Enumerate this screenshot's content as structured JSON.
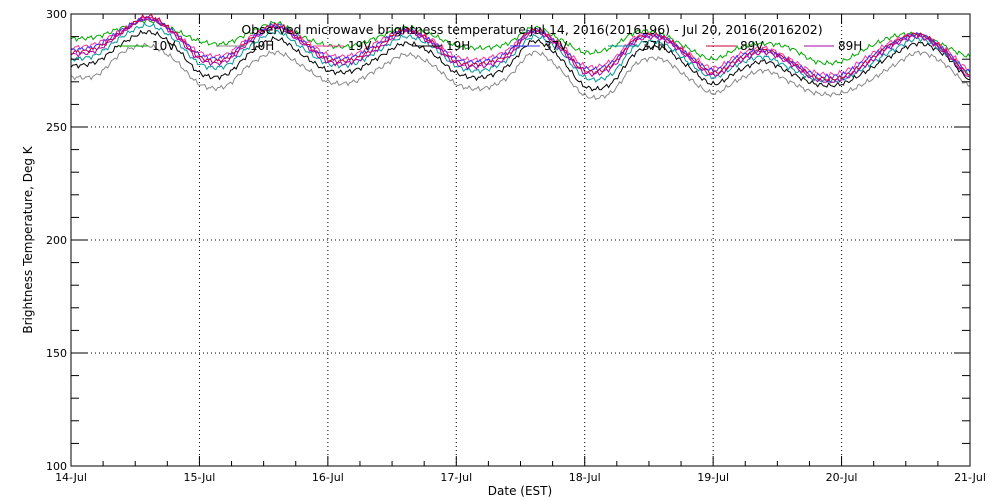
{
  "chart_data": {
    "type": "line",
    "title": "Observed microwave brightness temperature Jul 14, 2016(2016196) - Jul 20, 2016(2016202)",
    "xlabel": "Date (EST)",
    "ylabel": "Brightness Temperature, Deg K",
    "xlim": [
      0,
      7
    ],
    "ylim": [
      100,
      300
    ],
    "x_tick_values": [
      0,
      1,
      2,
      3,
      4,
      5,
      6,
      7
    ],
    "x_tick_labels": [
      "14-Jul",
      "15-Jul",
      "16-Jul",
      "17-Jul",
      "18-Jul",
      "19-Jul",
      "20-Jul",
      "21-Jul"
    ],
    "y_ticks": [
      100,
      150,
      200,
      250,
      300
    ],
    "grid": true,
    "legend_position": "top",
    "x": [
      0,
      0.2,
      0.4,
      0.6,
      0.8,
      1.0,
      1.2,
      1.4,
      1.6,
      1.8,
      2.0,
      2.2,
      2.4,
      2.6,
      2.8,
      3.0,
      3.2,
      3.4,
      3.6,
      3.8,
      4.0,
      4.2,
      4.4,
      4.6,
      4.8,
      5.0,
      5.2,
      5.4,
      5.6,
      5.8,
      6.0,
      6.2,
      6.4,
      6.6,
      6.8,
      7.0
    ],
    "series": [
      {
        "name": "10V",
        "color": "#00aa00",
        "values": [
          289,
          290,
          294,
          297,
          293,
          288,
          287,
          292,
          296,
          290,
          286,
          286,
          290,
          294,
          291,
          286,
          285,
          287,
          294,
          289,
          283,
          285,
          292,
          291,
          285,
          280,
          285,
          287,
          285,
          279,
          279,
          285,
          290,
          291,
          286,
          281
        ]
      },
      {
        "name": "10H",
        "color": "#888888",
        "values": [
          272,
          273,
          283,
          286,
          280,
          269,
          268,
          278,
          283,
          277,
          270,
          270,
          276,
          282,
          278,
          269,
          267,
          272,
          283,
          276,
          264,
          265,
          278,
          280,
          272,
          265,
          271,
          275,
          270,
          265,
          265,
          270,
          277,
          283,
          278,
          268
        ]
      },
      {
        "name": "19V",
        "color": "#ff3399",
        "values": [
          285,
          287,
          293,
          298,
          292,
          283,
          282,
          290,
          295,
          289,
          282,
          282,
          288,
          293,
          289,
          281,
          280,
          284,
          293,
          287,
          277,
          279,
          290,
          290,
          283,
          276,
          282,
          285,
          280,
          274,
          274,
          281,
          288,
          291,
          285,
          275
        ]
      },
      {
        "name": "19H",
        "color": "#000000",
        "values": [
          277,
          279,
          287,
          292,
          286,
          274,
          273,
          283,
          289,
          282,
          275,
          275,
          281,
          287,
          283,
          274,
          272,
          277,
          288,
          281,
          268,
          269,
          283,
          285,
          277,
          269,
          275,
          279,
          274,
          269,
          269,
          275,
          282,
          287,
          282,
          271
        ]
      },
      {
        "name": "37V",
        "color": "#3333ff",
        "values": [
          284,
          286,
          293,
          298,
          292,
          282,
          281,
          289,
          295,
          288,
          281,
          281,
          287,
          293,
          288,
          280,
          279,
          283,
          293,
          286,
          276,
          278,
          289,
          290,
          282,
          275,
          281,
          284,
          279,
          273,
          273,
          280,
          287,
          291,
          284,
          274
        ]
      },
      {
        "name": "37H",
        "color": "#009999",
        "values": [
          280,
          282,
          290,
          295,
          289,
          278,
          277,
          286,
          292,
          285,
          278,
          278,
          284,
          290,
          286,
          277,
          275,
          280,
          290,
          284,
          272,
          273,
          286,
          287,
          279,
          272,
          278,
          281,
          276,
          271,
          271,
          277,
          284,
          289,
          283,
          273
        ]
      },
      {
        "name": "89V",
        "color": "#cc0033",
        "values": [
          283,
          285,
          292,
          299,
          292,
          281,
          280,
          289,
          295,
          288,
          280,
          280,
          286,
          293,
          288,
          279,
          278,
          282,
          293,
          286,
          275,
          277,
          289,
          290,
          282,
          274,
          280,
          284,
          279,
          272,
          272,
          279,
          287,
          291,
          284,
          273
        ]
      },
      {
        "name": "89H",
        "color": "#aa00aa",
        "values": [
          282,
          284,
          292,
          298,
          291,
          280,
          279,
          288,
          294,
          287,
          279,
          279,
          285,
          292,
          287,
          278,
          277,
          281,
          292,
          285,
          274,
          276,
          288,
          289,
          281,
          273,
          279,
          283,
          278,
          271,
          271,
          278,
          286,
          290,
          283,
          272
        ]
      }
    ]
  }
}
